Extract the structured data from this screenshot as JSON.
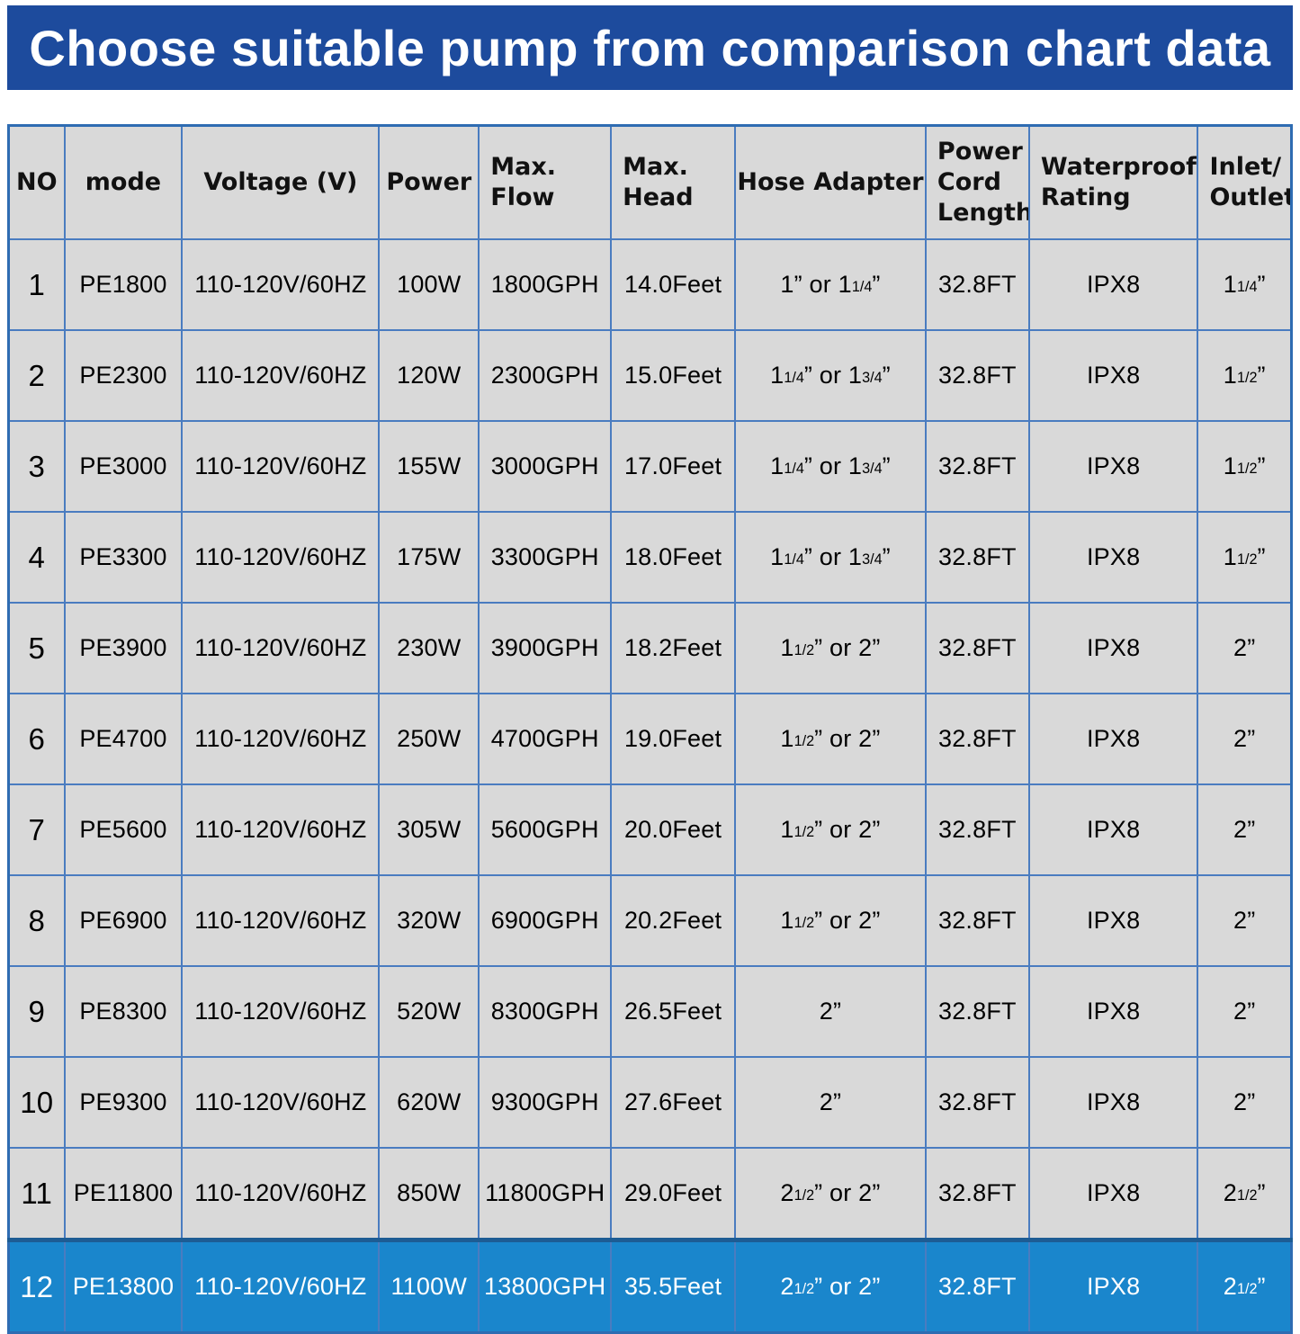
{
  "banner": {
    "title": "Choose suitable pump from comparison chart data"
  },
  "colors": {
    "banner-bg": "#1d4b9d",
    "cell-bg": "#d9d9d9",
    "grid": "#4a7cc0",
    "outer-border": "#2e6cb2",
    "highlight-bg": "#1a86cc",
    "highlight-separator": "#1d5c94",
    "banner-text": "#ffffff",
    "highlight-text": "#ffffff"
  },
  "chart_data": {
    "type": "table",
    "title": "Choose suitable pump from comparison chart data",
    "highlighted_row": 12,
    "column_keys": [
      "no",
      "mode",
      "voltage",
      "power",
      "max-flow",
      "max-head",
      "hose-adapter",
      "power-cord-length",
      "waterproof-rating",
      "inlet-outlet"
    ],
    "columns": [
      {
        "label": "NO",
        "align": "center"
      },
      {
        "label": "mode",
        "align": "center"
      },
      {
        "label": "Voltage (V)",
        "align": "center"
      },
      {
        "label": "Power",
        "align": "center"
      },
      {
        "label": "Max.\nFlow",
        "align": "left"
      },
      {
        "label": "Max.\nHead",
        "align": "left"
      },
      {
        "label": "Hose Adapter",
        "align": "center"
      },
      {
        "label": "Power\nCord\nLength",
        "align": "left"
      },
      {
        "label": "Waterproof\nRating",
        "align": "left"
      },
      {
        "label": "Inlet/\nOutlet",
        "align": "left"
      }
    ],
    "rows": [
      [
        "1",
        "PE1800",
        "110-120V/60HZ",
        "100W",
        "1800GPH",
        "14.0Feet",
        "1” or 11/4”",
        "32.8FT",
        "IPX8",
        "11/4”"
      ],
      [
        "2",
        "PE2300",
        "110-120V/60HZ",
        "120W",
        "2300GPH",
        "15.0Feet",
        "11/4” or 13/4”",
        "32.8FT",
        "IPX8",
        "11/2”"
      ],
      [
        "3",
        "PE3000",
        "110-120V/60HZ",
        "155W",
        "3000GPH",
        "17.0Feet",
        "11/4” or 13/4”",
        "32.8FT",
        "IPX8",
        "11/2”"
      ],
      [
        "4",
        "PE3300",
        "110-120V/60HZ",
        "175W",
        "3300GPH",
        "18.0Feet",
        "11/4” or 13/4”",
        "32.8FT",
        "IPX8",
        "11/2”"
      ],
      [
        "5",
        "PE3900",
        "110-120V/60HZ",
        "230W",
        "3900GPH",
        "18.2Feet",
        "11/2” or 2”",
        "32.8FT",
        "IPX8",
        "2”"
      ],
      [
        "6",
        "PE4700",
        "110-120V/60HZ",
        "250W",
        "4700GPH",
        "19.0Feet",
        "11/2” or 2”",
        "32.8FT",
        "IPX8",
        "2”"
      ],
      [
        "7",
        "PE5600",
        "110-120V/60HZ",
        "305W",
        "5600GPH",
        "20.0Feet",
        "11/2” or 2”",
        "32.8FT",
        "IPX8",
        "2”"
      ],
      [
        "8",
        "PE6900",
        "110-120V/60HZ",
        "320W",
        "6900GPH",
        "20.2Feet",
        "11/2” or 2”",
        "32.8FT",
        "IPX8",
        "2”"
      ],
      [
        "9",
        "PE8300",
        "110-120V/60HZ",
        "520W",
        "8300GPH",
        "26.5Feet",
        "2”",
        "32.8FT",
        "IPX8",
        "2”"
      ],
      [
        "10",
        "PE9300",
        "110-120V/60HZ",
        "620W",
        "9300GPH",
        "27.6Feet",
        "2”",
        "32.8FT",
        "IPX8",
        "2”"
      ],
      [
        "11",
        "PE11800",
        "110-120V/60HZ",
        "850W",
        "11800GPH",
        "29.0Feet",
        "21/2” or 2”",
        "32.8FT",
        "IPX8",
        "21/2”"
      ],
      [
        "12",
        "PE13800",
        "110-120V/60HZ",
        "1100W",
        "13800GPH",
        "35.5Feet",
        "21/2” or 2”",
        "32.8FT",
        "IPX8",
        "21/2”"
      ]
    ]
  }
}
